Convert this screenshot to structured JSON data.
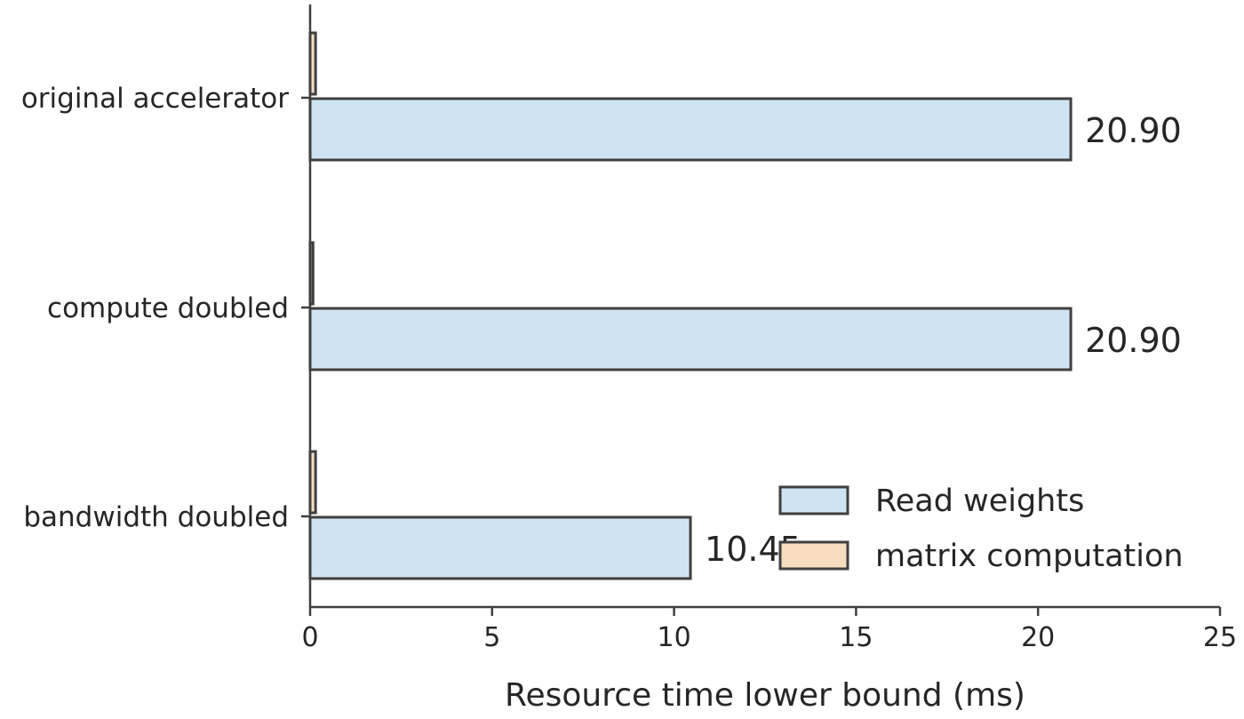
{
  "chart_data": {
    "type": "bar",
    "orientation": "horizontal",
    "categories": [
      "original accelerator",
      "compute doubled",
      "bandwidth doubled"
    ],
    "series": [
      {
        "name": "Read weights",
        "values": [
          20.9,
          20.9,
          10.45
        ],
        "labels": [
          "20.90",
          "20.90",
          "10.45"
        ],
        "color": "#cfe4f3"
      },
      {
        "name": "matrix computation",
        "values": [
          0.15,
          0.08,
          0.15
        ],
        "color": "#f8dcc0"
      }
    ],
    "xlabel": "Resource time lower bound (ms)",
    "ylabel": "",
    "xlim": [
      0,
      25
    ],
    "xticks": [
      0,
      5,
      10,
      15,
      20,
      25
    ],
    "grid": false,
    "legend_position": "bottom-right",
    "edge_color": "#3f3f3f"
  }
}
